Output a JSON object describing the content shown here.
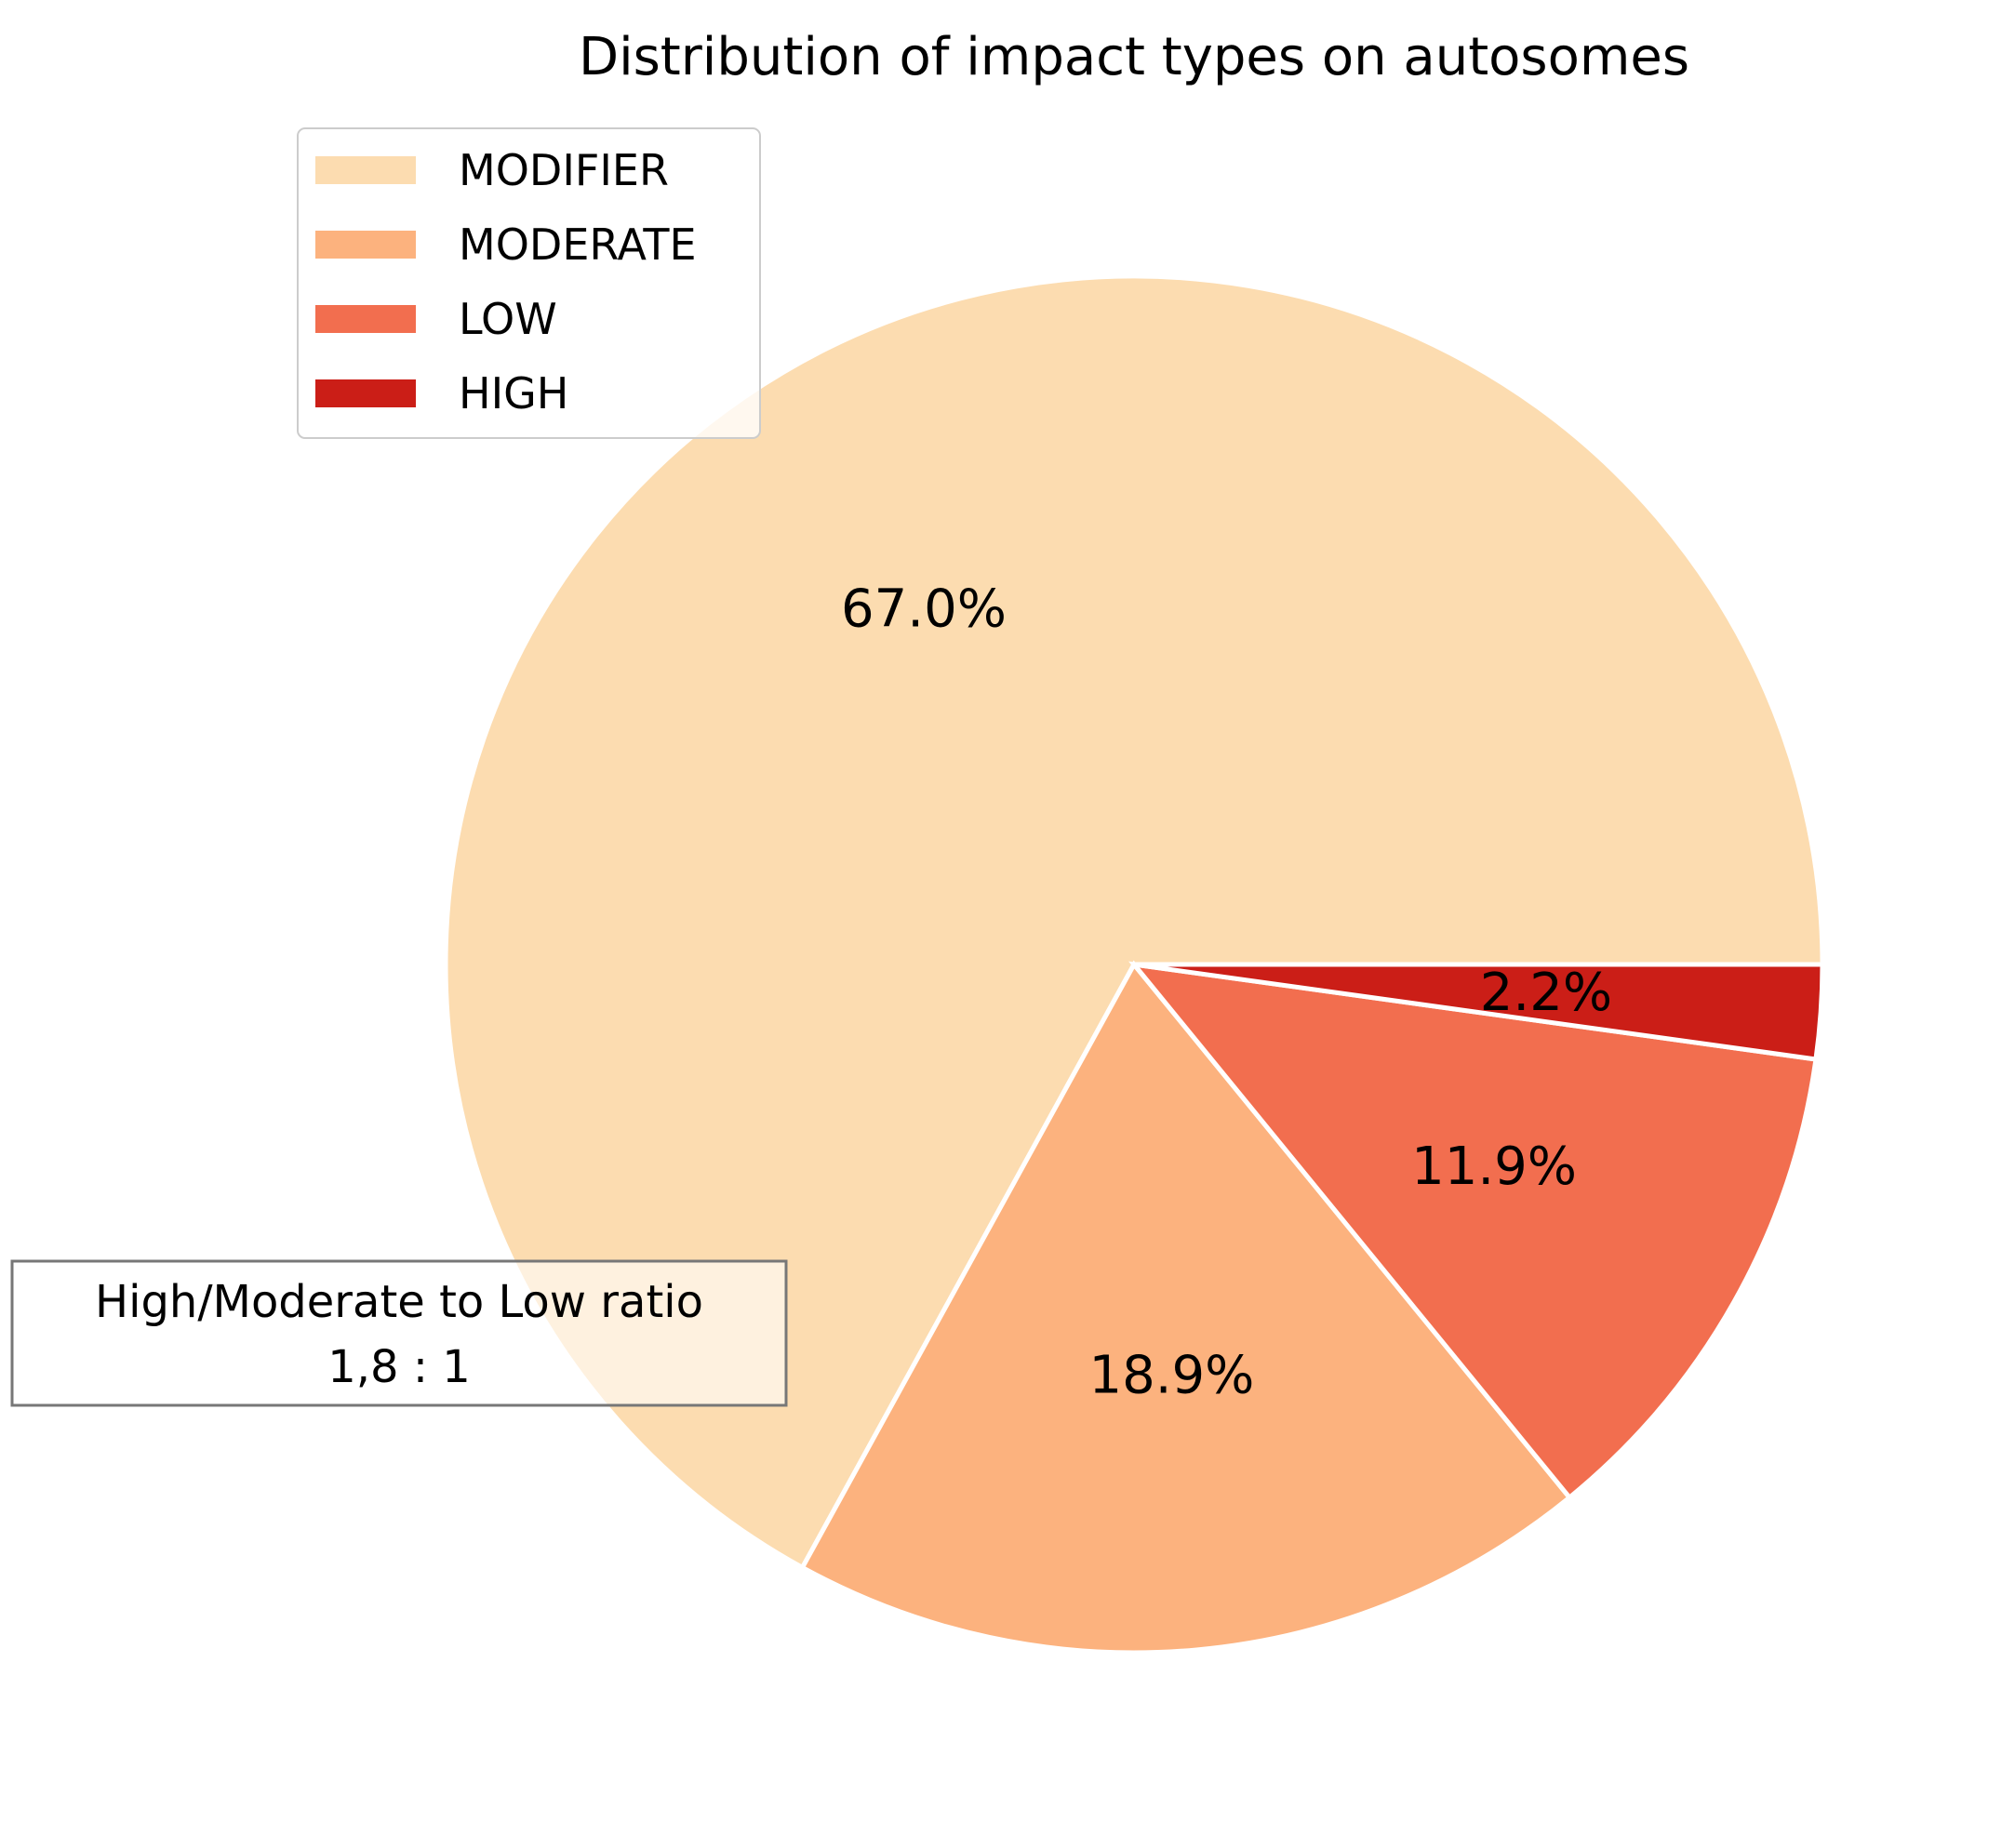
{
  "chart_data": {
    "type": "pie",
    "title": "Distribution of impact types on autosomes",
    "slices": [
      {
        "label": "MODIFIER",
        "value": 67.0,
        "display": "67.0%",
        "color": "#fcdcb0"
      },
      {
        "label": "MODERATE",
        "value": 18.9,
        "display": "18.9%",
        "color": "#fcb27e"
      },
      {
        "label": "LOW",
        "value": 11.9,
        "display": "11.9%",
        "color": "#f26e4f"
      },
      {
        "label": "HIGH",
        "value": 2.2,
        "display": "2.2%",
        "color": "#cb1e17"
      }
    ],
    "legend_position": "upper-left",
    "annotation": {
      "line1": "High/Moderate to Low ratio",
      "line2": "1,8 : 1"
    }
  }
}
